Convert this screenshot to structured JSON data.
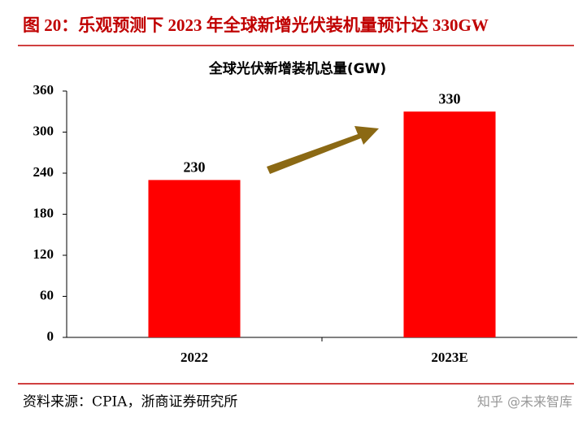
{
  "header": "图 20：乐观预测下 2023 年全球新增光伏装机量预计达 330GW",
  "source": "资料来源：CPIA，浙商证券研究所",
  "watermark": "知乎 @未来智库",
  "chart_data": {
    "type": "bar",
    "title": "全球光伏新增装机总量(GW)",
    "categories": [
      "2022",
      "2023E"
    ],
    "values": [
      230,
      330
    ],
    "color": "#ff0000",
    "ylim": [
      0,
      360
    ],
    "yticks": [
      0,
      60,
      120,
      180,
      240,
      300,
      360
    ],
    "grid": false
  }
}
